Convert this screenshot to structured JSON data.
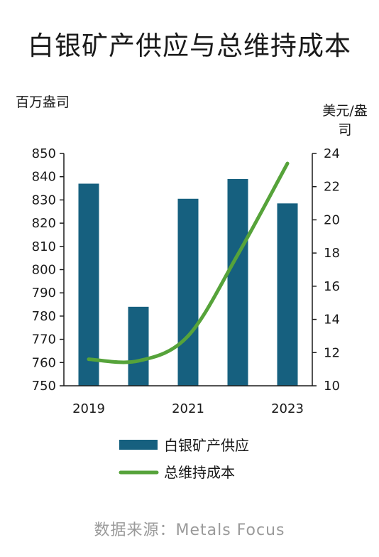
{
  "title": "白银矿产供应与总维持成本",
  "source": "数据来源：Metals Focus",
  "colors": {
    "bar": "#16607f",
    "line": "#56a33a",
    "axis": "#1a1a1a"
  },
  "chart_data": {
    "type": "bar",
    "title": "白银矿产供应与总维持成本",
    "x": [
      2019,
      2020,
      2021,
      2022,
      2023
    ],
    "x_tick_labels": [
      "2019",
      "",
      "2021",
      "",
      "2023"
    ],
    "y_left_unit": "百万盎司",
    "y_right_unit_lines": [
      "美元/盎",
      "司"
    ],
    "y_left_range": [
      750,
      850
    ],
    "y_left_ticks": [
      750,
      760,
      770,
      780,
      790,
      800,
      810,
      820,
      830,
      840,
      850
    ],
    "y_right_range": [
      10,
      24
    ],
    "y_right_ticks": [
      10,
      12,
      14,
      16,
      18,
      20,
      22,
      24
    ],
    "grid": false,
    "legend_position": "bottom",
    "series": [
      {
        "name": "白银矿产供应",
        "type": "bar",
        "axis": "left",
        "values": [
          837,
          784,
          830.5,
          839,
          828.5
        ]
      },
      {
        "name": "总维持成本",
        "type": "line",
        "axis": "right",
        "values": [
          11.6,
          11.5,
          13.0,
          17.9,
          23.4
        ]
      }
    ]
  }
}
